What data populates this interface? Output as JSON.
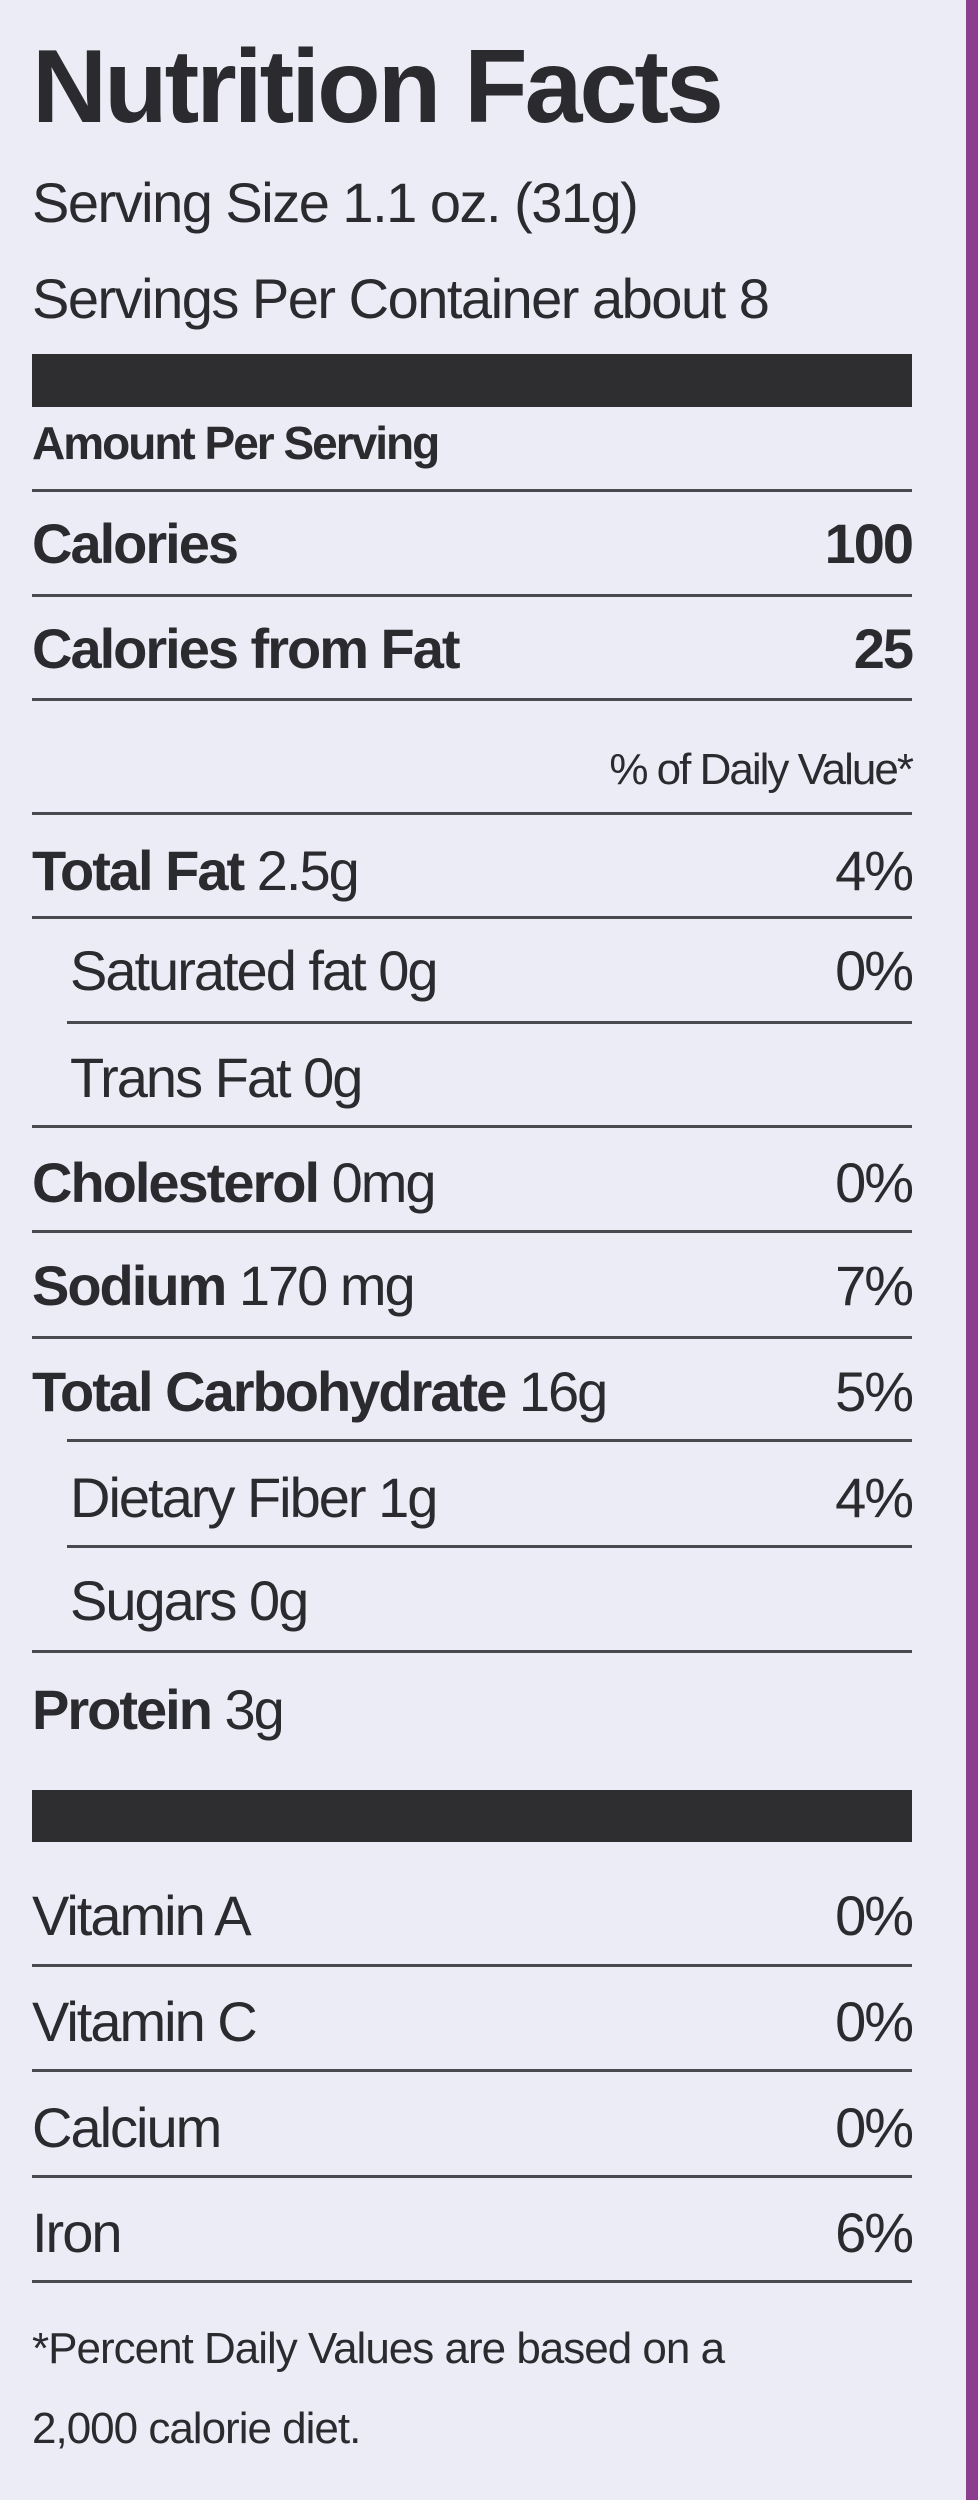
{
  "header": {
    "title": "Nutrition Facts",
    "serving_size": "Serving Size 1.1 oz. (31g)",
    "servings_per_container": "Servings Per Container about 8"
  },
  "amount_per_serving": "Amount Per Serving",
  "calories": {
    "label": "Calories",
    "value": "100"
  },
  "calories_from_fat": {
    "label": "Calories from Fat",
    "value": "25"
  },
  "daily_value_header": "% of Daily Value*",
  "nutrients": [
    {
      "name": "Total Fat",
      "amount": "2.5g",
      "dv": "4%"
    },
    {
      "name": "Saturated fat 0g",
      "dv": "0%"
    },
    {
      "name": "Trans Fat 0g"
    },
    {
      "name": "Cholesterol",
      "amount": "0mg",
      "dv": "0%"
    },
    {
      "name": "Sodium",
      "amount": "170 mg",
      "dv": "7%"
    },
    {
      "name": "Total Carbohydrate",
      "amount": "16g",
      "dv": "5%"
    },
    {
      "name": "Dietary Fiber 1g",
      "dv": "4%"
    },
    {
      "name": "Sugars 0g"
    },
    {
      "name": "Protein",
      "amount": "3g"
    }
  ],
  "vitamins": [
    {
      "name": "Vitamin A",
      "dv": "0%"
    },
    {
      "name": "Vitamin C",
      "dv": "0%"
    },
    {
      "name": "Calcium",
      "dv": "0%"
    },
    {
      "name": "Iron",
      "dv": "6%"
    }
  ],
  "footnote": [
    "*Percent Daily Values are based on a",
    "2,000 calorie diet."
  ]
}
